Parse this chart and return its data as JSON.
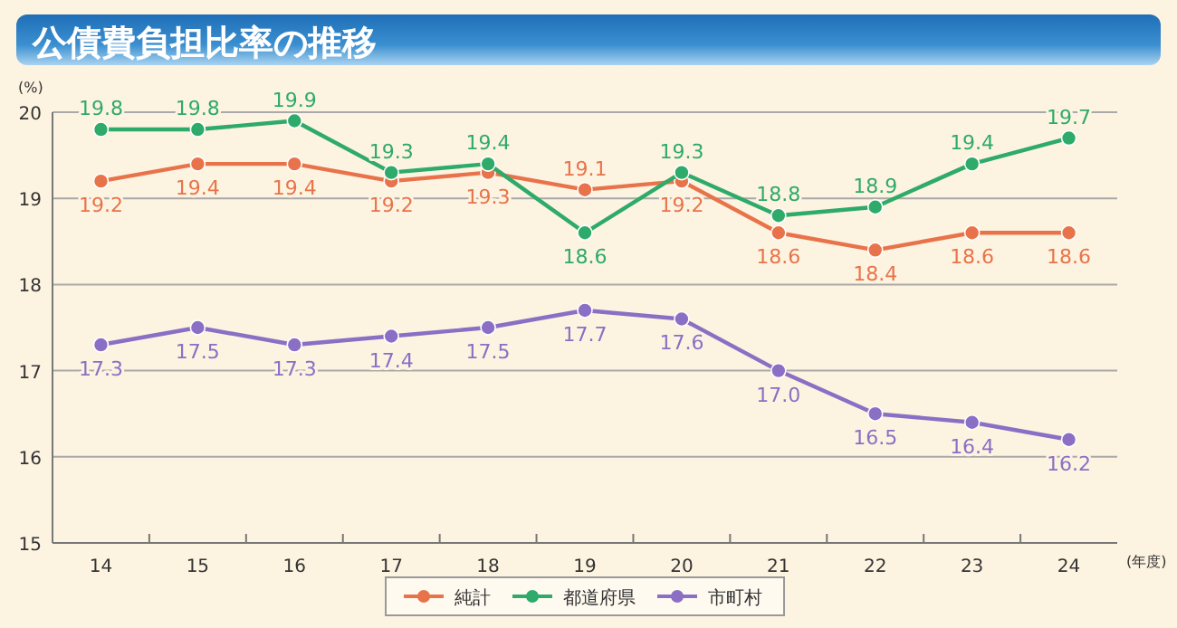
{
  "chart_data": {
    "type": "line",
    "title": "公債費負担比率の推移",
    "ylabel": "(%)",
    "xlabel": "(年度)",
    "categories": [
      "14",
      "15",
      "16",
      "17",
      "18",
      "19",
      "20",
      "21",
      "22",
      "23",
      "24"
    ],
    "series": [
      {
        "name": "純計",
        "color": "#e8734a",
        "values": [
          19.2,
          19.4,
          19.4,
          19.2,
          19.3,
          19.1,
          19.2,
          18.6,
          18.4,
          18.6,
          18.6
        ],
        "value_labels": [
          "19.2",
          "19.4",
          "19.4",
          "19.2",
          "19.3",
          "19.1",
          "19.2",
          "18.6",
          "18.4",
          "18.6",
          "18.6"
        ]
      },
      {
        "name": "都道府県",
        "color": "#2eaa6a",
        "values": [
          19.8,
          19.8,
          19.9,
          19.3,
          19.4,
          18.6,
          19.3,
          18.8,
          18.9,
          19.4,
          19.7
        ],
        "value_labels": [
          "19.8",
          "19.8",
          "19.9",
          "19.3",
          "19.4",
          "18.6",
          "19.3",
          "18.8",
          "18.9",
          "19.4",
          "19.7"
        ]
      },
      {
        "name": "市町村",
        "color": "#8b6fc4",
        "values": [
          17.3,
          17.5,
          17.3,
          17.4,
          17.5,
          17.7,
          17.6,
          17.0,
          16.5,
          16.4,
          16.2
        ],
        "value_labels": [
          "17.3",
          "17.5",
          "17.3",
          "17.4",
          "17.5",
          "17.7",
          "17.6",
          "17.0",
          "16.5",
          "16.4",
          "16.2"
        ]
      }
    ],
    "ylim": [
      15,
      20
    ],
    "yticks": [
      15,
      16,
      17,
      18,
      19,
      20
    ],
    "grid": "y",
    "legend": "bottom",
    "marker": "circle",
    "line_style": "solid"
  }
}
